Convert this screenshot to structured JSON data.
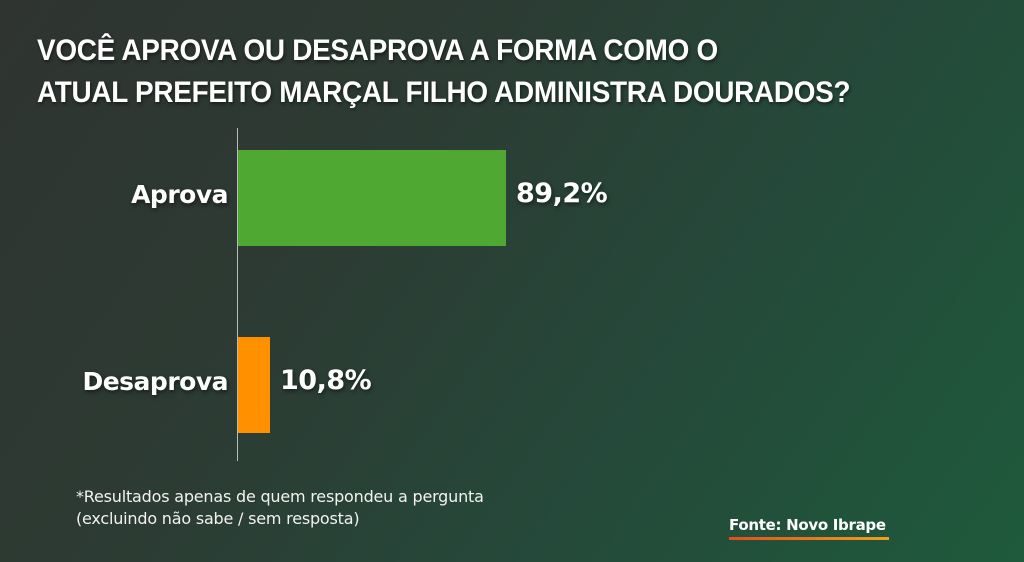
{
  "title": {
    "line1": "VOCÊ APROVA OU DESAPROVA A FORMA COMO O",
    "line2": "ATUAL PREFEITO MARÇAL FILHO ADMINISTRA DOURADOS?"
  },
  "note": {
    "line1": "*Resultados apenas de quem respondeu a pergunta",
    "line2": "(excluindo não sabe / sem resposta)"
  },
  "source": "Fonte: Novo Ibrape",
  "colors": {
    "aprova": "#4ea832",
    "desaprova": "#ff9100",
    "source_underline_start": "#e0501e",
    "source_underline_end": "#f0a020"
  },
  "bars": [
    {
      "label": "Aprova",
      "value": 89.2,
      "value_label": "89,2%",
      "color": "#4ea832"
    },
    {
      "label": "Desaprova",
      "value": 10.8,
      "value_label": "10,8%",
      "color": "#ff9100"
    }
  ],
  "chart_data": {
    "type": "bar",
    "orientation": "horizontal",
    "title": "VOCÊ APROVA OU DESAPROVA A FORMA COMO O ATUAL PREFEITO MARÇAL FILHO ADMINISTRA DOURADOS?",
    "categories": [
      "Aprova",
      "Desaprova"
    ],
    "values": [
      89.2,
      10.8
    ],
    "value_labels": [
      "89,2%",
      "10,8%"
    ],
    "colors": [
      "#4ea832",
      "#ff9100"
    ],
    "unit": "%",
    "xlabel": "",
    "ylabel": "",
    "xlim": [
      0,
      100
    ],
    "grid": false,
    "legend": null,
    "annotations": [
      "*Resultados apenas de quem respondeu a pergunta (excluindo não sabe / sem resposta)",
      "Fonte: Novo Ibrape"
    ]
  }
}
